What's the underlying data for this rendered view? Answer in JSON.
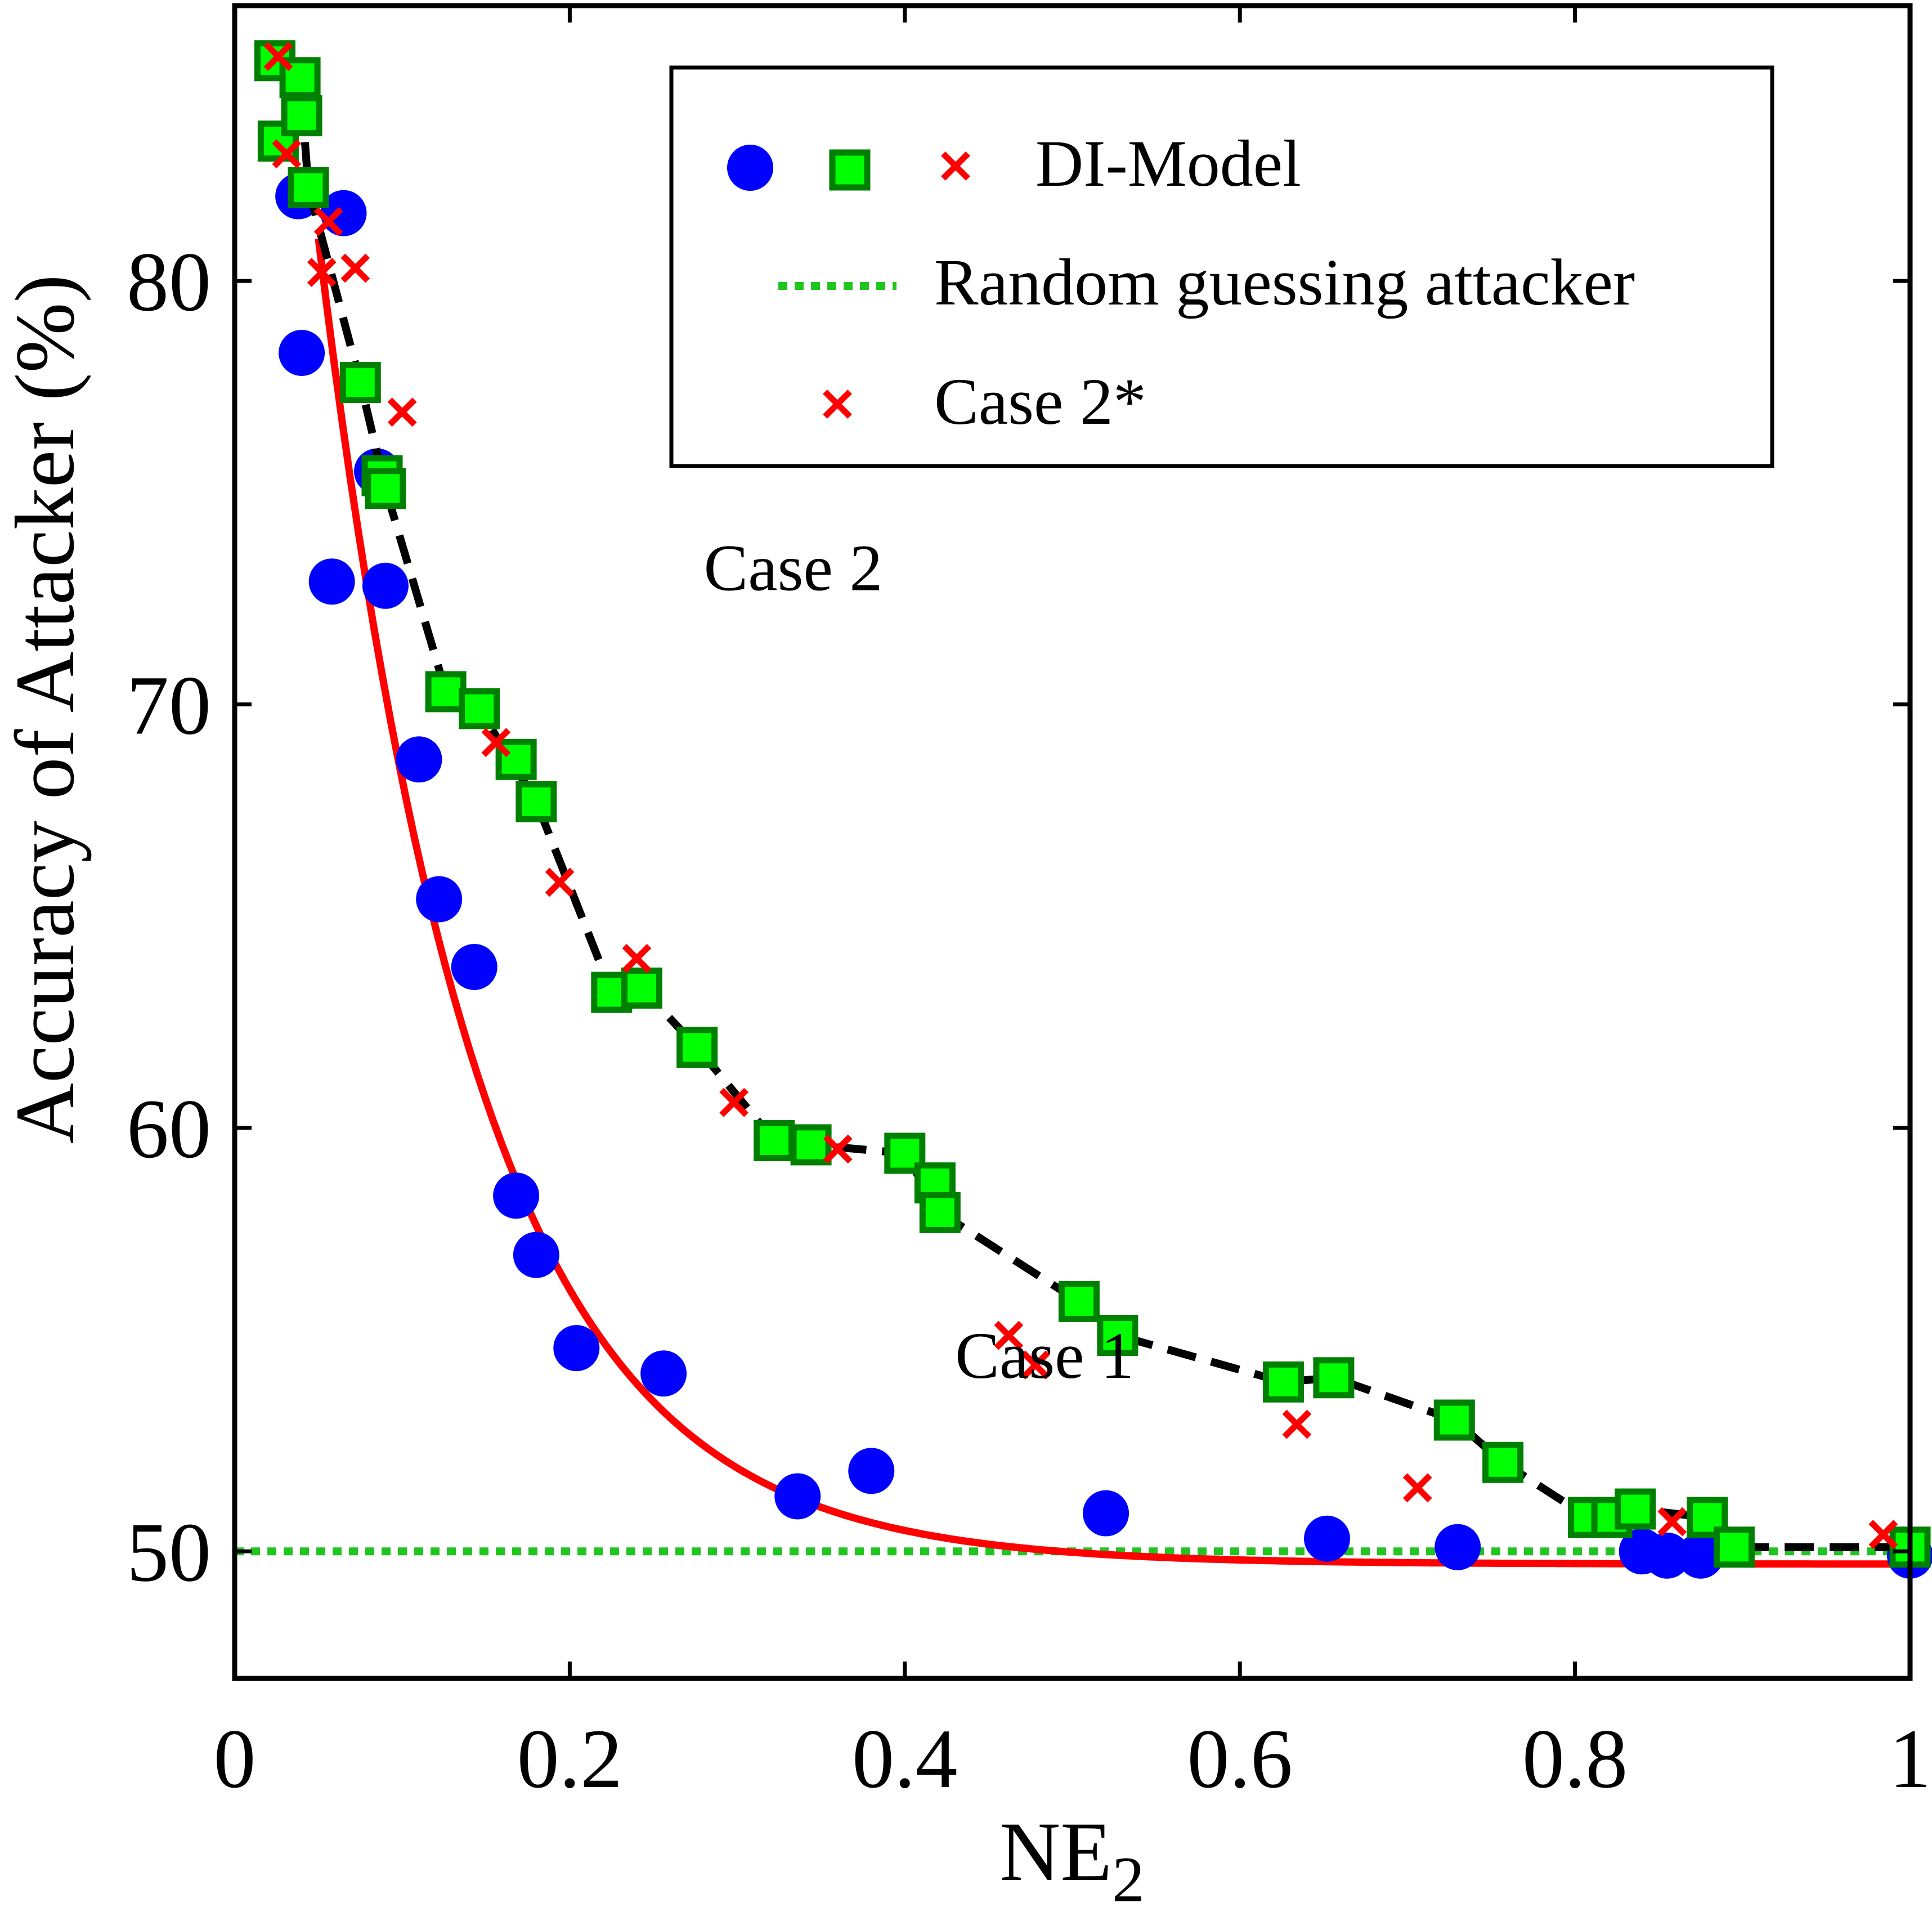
{
  "chart_data": {
    "type": "scatter",
    "xlabel": "NE",
    "xlabel_subscript": "2",
    "ylabel": "Accuracy of Attacker (%)",
    "xlim": [
      0,
      1
    ],
    "ylim": [
      47,
      86.5
    ],
    "xticks": [
      0,
      0.2,
      0.4,
      0.6,
      0.8,
      1
    ],
    "xtick_labels": [
      "0",
      "0.2",
      "0.4",
      "0.6",
      "0.8",
      "1"
    ],
    "yticks": [
      50,
      60,
      70,
      80
    ],
    "ytick_labels": [
      "50",
      "60",
      "70",
      "80"
    ],
    "grid": false,
    "legend_position": "top-right",
    "legend": [
      {
        "label": "DI-Model",
        "markers": [
          "blue-circle",
          "green-square",
          "red-x"
        ]
      },
      {
        "label": "Random guessing attacker",
        "style": "green-dotted-line"
      },
      {
        "label": "Case 2*",
        "markers": [
          "red-x"
        ]
      }
    ],
    "annotations": [
      {
        "text": "Case 2",
        "x": 0.28,
        "y": 72.7
      },
      {
        "text": "Case 1",
        "x": 0.43,
        "y": 54.1
      }
    ],
    "colors": {
      "case1_points": "#0000ff",
      "case2_fill": "#00ff00",
      "case2_edge": "#008000",
      "case2_star": "#ff0000",
      "case1_curve": "#ff0000",
      "case2_line": "#000000",
      "random_line": "#22c422"
    },
    "series": [
      {
        "id": "case1",
        "marker": "circle",
        "x": [
          0.038,
          0.065,
          0.04,
          0.058,
          0.085,
          0.09,
          0.11,
          0.122,
          0.143,
          0.168,
          0.18,
          0.204,
          0.256,
          0.336,
          0.38,
          0.52,
          0.652,
          0.73,
          0.84,
          0.855,
          0.875,
          1.0
        ],
        "y": [
          82.0,
          81.6,
          78.3,
          72.9,
          75.5,
          72.8,
          68.7,
          65.4,
          63.8,
          58.4,
          57.0,
          54.8,
          54.2,
          51.3,
          51.9,
          50.9,
          50.3,
          50.1,
          50.0,
          49.9,
          49.9,
          49.9
        ]
      },
      {
        "id": "case1_fit",
        "style": "solid-line",
        "x0": 0.05,
        "x1": 1.0,
        "y_at_x0": 81.0,
        "asymptote": 49.7,
        "decay_rate": 10.5
      },
      {
        "id": "case2",
        "marker": "square",
        "x": [
          0.024,
          0.026,
          0.039,
          0.04,
          0.044,
          0.075,
          0.088,
          0.09,
          0.126,
          0.146,
          0.168,
          0.18,
          0.225,
          0.243,
          0.276,
          0.322,
          0.344,
          0.4,
          0.418,
          0.421,
          0.504,
          0.527,
          0.626,
          0.656,
          0.728,
          0.757,
          0.808,
          0.822,
          0.836,
          0.879,
          0.895,
          1.0
        ],
        "y": [
          85.2,
          83.3,
          84.8,
          83.9,
          82.2,
          77.6,
          75.4,
          75.1,
          70.3,
          69.9,
          68.7,
          67.7,
          63.2,
          63.3,
          61.9,
          59.7,
          59.6,
          59.4,
          58.7,
          58.0,
          55.9,
          55.1,
          54.0,
          54.1,
          53.1,
          52.1,
          50.8,
          50.8,
          51.0,
          50.8,
          50.1,
          50.1
        ]
      },
      {
        "id": "case2_line",
        "style": "dashed-line",
        "x": [
          0.024,
          0.04,
          0.044,
          0.075,
          0.09,
          0.126,
          0.146,
          0.18,
          0.225,
          0.243,
          0.276,
          0.322,
          0.344,
          0.4,
          0.421,
          0.504,
          0.527,
          0.626,
          0.656,
          0.728,
          0.757,
          0.808,
          0.836,
          0.879,
          0.895,
          1.0
        ],
        "y": [
          85.2,
          84.3,
          82.2,
          77.6,
          75.1,
          70.3,
          69.9,
          67.7,
          63.2,
          63.3,
          61.9,
          59.7,
          59.6,
          59.4,
          58.0,
          55.9,
          55.1,
          54.0,
          54.1,
          53.1,
          52.1,
          50.8,
          51.0,
          50.8,
          50.1,
          50.1
        ]
      },
      {
        "id": "case2star",
        "marker": "x",
        "x": [
          0.026,
          0.031,
          0.056,
          0.052,
          0.072,
          0.1,
          0.156,
          0.194,
          0.24,
          0.298,
          0.36,
          0.462,
          0.478,
          0.634,
          0.706,
          0.858,
          0.984
        ],
        "y": [
          85.3,
          83.0,
          81.4,
          80.2,
          80.3,
          76.9,
          69.1,
          65.8,
          64.0,
          60.6,
          59.5,
          55.1,
          54.4,
          53.0,
          51.5,
          50.7,
          50.4
        ]
      },
      {
        "id": "random",
        "style": "dotted-line",
        "y": 50.0
      }
    ]
  }
}
